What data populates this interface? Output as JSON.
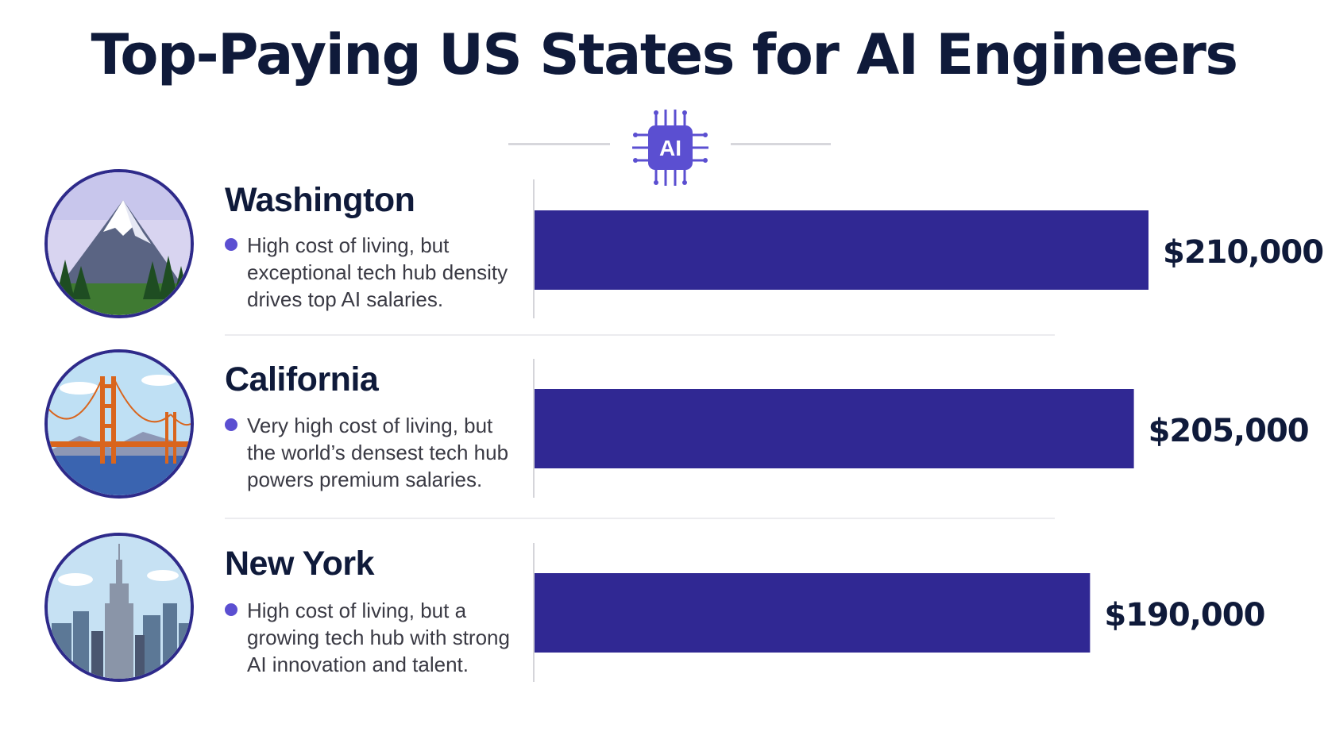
{
  "title": "Top-Paying US States for AI Engineers",
  "icon": {
    "name": "ai-chip-icon",
    "text": "AI",
    "color": "#5b4fd1"
  },
  "colors": {
    "bar": "#302893",
    "text": "#0f1a3a",
    "bullet": "#5b4fd1"
  },
  "rows": [
    {
      "state": "Washington",
      "description": "High cost of living, but exceptional tech hub density drives top AI salaries.",
      "icon": "mountain-icon"
    },
    {
      "state": "California",
      "description": "Very high cost of living, but the world’s densest tech hub powers premium salaries.",
      "icon": "golden-gate-bridge-icon"
    },
    {
      "state": "New York",
      "description": "High cost of living, but a growing tech hub with strong AI innovation and talent.",
      "icon": "empire-state-skyline-icon"
    }
  ],
  "chart_data": {
    "type": "bar",
    "orientation": "horizontal",
    "categories": [
      "Washington",
      "California",
      "New York"
    ],
    "values": [
      210000,
      205000,
      190000
    ],
    "value_labels": [
      "$210,000",
      "$205,000",
      "$190,000"
    ],
    "xlim": [
      0,
      210000
    ],
    "grid": false,
    "legend": "none"
  }
}
